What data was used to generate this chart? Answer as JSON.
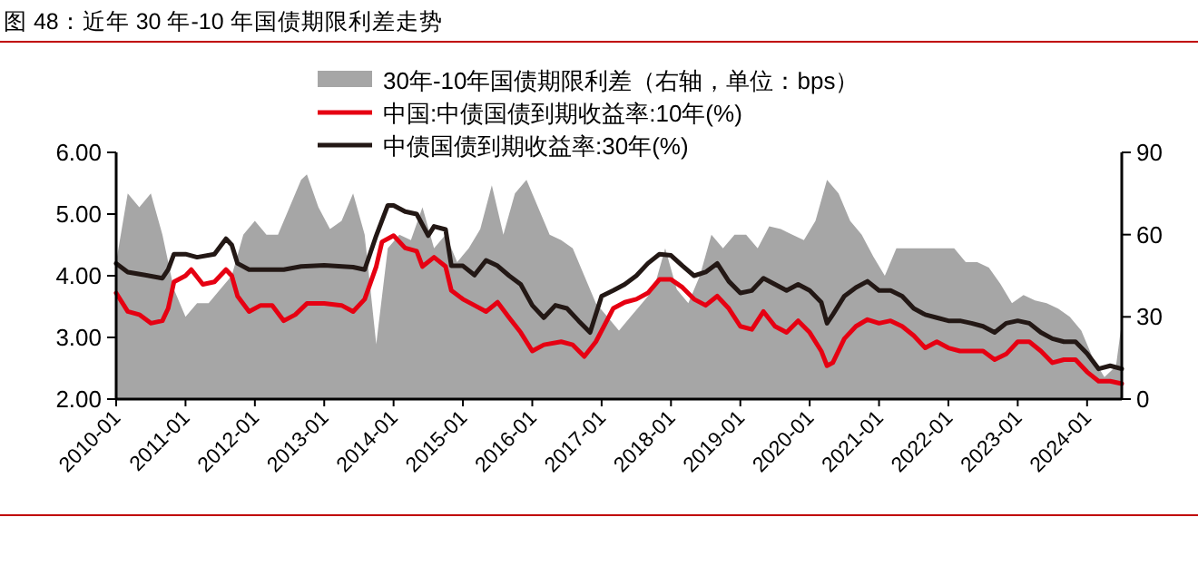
{
  "chart_data": {
    "type": "line",
    "title": "图 48：近年 30 年-10 年国债期限利差走势",
    "xlim": [
      "2010-01",
      "2024-07"
    ],
    "xticks": [
      "2010-01",
      "2011-01",
      "2012-01",
      "2013-01",
      "2014-01",
      "2015-01",
      "2016-01",
      "2017-01",
      "2018-01",
      "2019-01",
      "2020-01",
      "2021-01",
      "2022-01",
      "2023-01",
      "2024-01"
    ],
    "ylim": [
      2,
      6
    ],
    "yticks": [
      {
        "value": 2,
        "label": "2.00"
      },
      {
        "value": 3,
        "label": "3.00"
      },
      {
        "value": 4,
        "label": "4.00"
      },
      {
        "value": 5,
        "label": "5.00"
      },
      {
        "value": 6,
        "label": "6.00"
      }
    ],
    "y2lim": [
      0,
      90
    ],
    "y2ticks": [
      0,
      30,
      60,
      90
    ],
    "legend": "top",
    "series": [
      {
        "name": "30年-10年国债期限利差（右轴，单位：bps）",
        "type": "area",
        "axis": "y2",
        "color": "#a6a6a6",
        "x": [
          "2010-01",
          "2010-03",
          "2010-05",
          "2010-07",
          "2010-09",
          "2010-11",
          "2011-01",
          "2011-03",
          "2011-05",
          "2011-07",
          "2011-09",
          "2011-11",
          "2012-01",
          "2012-03",
          "2012-05",
          "2012-07",
          "2012-09",
          "2012-10",
          "2012-12",
          "2013-02",
          "2013-04",
          "2013-06",
          "2013-08",
          "2013-10",
          "2013-12",
          "2014-02",
          "2014-04",
          "2014-06",
          "2014-08",
          "2014-10",
          "2014-12",
          "2015-02",
          "2015-04",
          "2015-06",
          "2015-08",
          "2015-10",
          "2015-12",
          "2016-02",
          "2016-04",
          "2016-06",
          "2016-08",
          "2016-10",
          "2016-12",
          "2017-02",
          "2017-04",
          "2017-06",
          "2017-08",
          "2017-10",
          "2017-12",
          "2018-02",
          "2018-04",
          "2018-06",
          "2018-08",
          "2018-10",
          "2018-12",
          "2019-02",
          "2019-04",
          "2019-06",
          "2019-08",
          "2019-10",
          "2019-12",
          "2020-02",
          "2020-04",
          "2020-06",
          "2020-08",
          "2020-10",
          "2020-12",
          "2021-02",
          "2021-04",
          "2021-06",
          "2021-08",
          "2021-10",
          "2021-12",
          "2022-02",
          "2022-04",
          "2022-06",
          "2022-08",
          "2022-10",
          "2022-12",
          "2023-02",
          "2023-04",
          "2023-06",
          "2023-08",
          "2023-10",
          "2023-12",
          "2024-02",
          "2024-04",
          "2024-06",
          "2024-07"
        ],
        "values": [
          50,
          75,
          70,
          75,
          60,
          40,
          30,
          35,
          35,
          40,
          45,
          60,
          65,
          60,
          60,
          70,
          80,
          82,
          70,
          62,
          65,
          75,
          60,
          20,
          55,
          60,
          58,
          70,
          55,
          60,
          50,
          55,
          62,
          78,
          60,
          75,
          80,
          70,
          60,
          58,
          55,
          45,
          35,
          30,
          25,
          30,
          35,
          40,
          55,
          40,
          35,
          45,
          60,
          55,
          60,
          60,
          55,
          63,
          62,
          60,
          58,
          65,
          80,
          75,
          65,
          60,
          52,
          45,
          55,
          55,
          55,
          55,
          55,
          55,
          50,
          50,
          48,
          42,
          35,
          38,
          36,
          35,
          33,
          30,
          25,
          15,
          8,
          12,
          28
        ]
      },
      {
        "name": "中国:中债国债到期收益率:10年(%)",
        "color": "#e60012",
        "x": [
          "2010-01",
          "2010-03",
          "2010-05",
          "2010-07",
          "2010-09",
          "2010-10",
          "2010-11",
          "2011-01",
          "2011-02",
          "2011-04",
          "2011-06",
          "2011-08",
          "2011-09",
          "2011-10",
          "2011-12",
          "2012-02",
          "2012-04",
          "2012-06",
          "2012-08",
          "2012-10",
          "2013-01",
          "2013-04",
          "2013-06",
          "2013-08",
          "2013-10",
          "2013-11",
          "2014-01",
          "2014-03",
          "2014-05",
          "2014-06",
          "2014-08",
          "2014-10",
          "2014-11",
          "2015-01",
          "2015-03",
          "2015-05",
          "2015-07",
          "2015-09",
          "2015-11",
          "2016-01",
          "2016-03",
          "2016-06",
          "2016-08",
          "2016-10",
          "2016-12",
          "2017-03",
          "2017-05",
          "2017-07",
          "2017-09",
          "2017-11",
          "2018-01",
          "2018-03",
          "2018-05",
          "2018-07",
          "2018-09",
          "2018-11",
          "2019-01",
          "2019-03",
          "2019-05",
          "2019-07",
          "2019-09",
          "2019-11",
          "2020-01",
          "2020-03",
          "2020-04",
          "2020-05",
          "2020-07",
          "2020-09",
          "2020-11",
          "2021-01",
          "2021-03",
          "2021-05",
          "2021-07",
          "2021-09",
          "2021-11",
          "2022-01",
          "2022-03",
          "2022-05",
          "2022-07",
          "2022-09",
          "2022-11",
          "2023-01",
          "2023-03",
          "2023-05",
          "2023-07",
          "2023-09",
          "2023-11",
          "2024-01",
          "2024-03",
          "2024-05",
          "2024-07"
        ],
        "values": [
          3.72,
          3.42,
          3.37,
          3.23,
          3.27,
          3.47,
          3.9,
          4.0,
          4.1,
          3.86,
          3.9,
          4.1,
          4.0,
          3.67,
          3.42,
          3.52,
          3.52,
          3.27,
          3.37,
          3.55,
          3.55,
          3.52,
          3.42,
          3.62,
          4.15,
          4.55,
          4.65,
          4.45,
          4.4,
          4.15,
          4.3,
          4.15,
          3.76,
          3.62,
          3.52,
          3.42,
          3.57,
          3.32,
          3.08,
          2.78,
          2.88,
          2.93,
          2.88,
          2.69,
          2.93,
          3.47,
          3.57,
          3.62,
          3.72,
          3.94,
          3.94,
          3.81,
          3.62,
          3.52,
          3.67,
          3.47,
          3.18,
          3.13,
          3.42,
          3.18,
          3.08,
          3.27,
          3.08,
          2.78,
          2.54,
          2.59,
          2.98,
          3.18,
          3.29,
          3.23,
          3.27,
          3.18,
          3.03,
          2.83,
          2.93,
          2.83,
          2.78,
          2.78,
          2.78,
          2.64,
          2.73,
          2.93,
          2.93,
          2.78,
          2.59,
          2.64,
          2.64,
          2.44,
          2.29,
          2.29,
          2.25
        ]
      },
      {
        "name": "中债国债到期收益率:30年(%)",
        "color": "#231815",
        "x": [
          "2010-01",
          "2010-03",
          "2010-06",
          "2010-09",
          "2010-10",
          "2010-11",
          "2011-01",
          "2011-03",
          "2011-06",
          "2011-08",
          "2011-09",
          "2011-10",
          "2011-12",
          "2012-03",
          "2012-06",
          "2012-09",
          "2013-01",
          "2013-06",
          "2013-08",
          "2013-10",
          "2013-12",
          "2014-01",
          "2014-03",
          "2014-05",
          "2014-07",
          "2014-08",
          "2014-10",
          "2014-11",
          "2015-01",
          "2015-03",
          "2015-05",
          "2015-07",
          "2015-09",
          "2015-11",
          "2016-01",
          "2016-03",
          "2016-05",
          "2016-07",
          "2016-09",
          "2016-11",
          "2017-01",
          "2017-03",
          "2017-05",
          "2017-07",
          "2017-09",
          "2017-11",
          "2018-01",
          "2018-03",
          "2018-05",
          "2018-07",
          "2018-09",
          "2018-11",
          "2019-01",
          "2019-03",
          "2019-05",
          "2019-07",
          "2019-09",
          "2019-11",
          "2020-01",
          "2020-03",
          "2020-04",
          "2020-05",
          "2020-07",
          "2020-09",
          "2020-11",
          "2021-01",
          "2021-03",
          "2021-05",
          "2021-07",
          "2021-09",
          "2021-11",
          "2022-01",
          "2022-03",
          "2022-05",
          "2022-07",
          "2022-09",
          "2022-11",
          "2023-01",
          "2023-03",
          "2023-05",
          "2023-07",
          "2023-09",
          "2023-11",
          "2024-01",
          "2024-03",
          "2024-05",
          "2024-07"
        ],
        "values": [
          4.2,
          4.06,
          4.01,
          3.96,
          4.1,
          4.35,
          4.35,
          4.3,
          4.35,
          4.6,
          4.5,
          4.2,
          4.1,
          4.1,
          4.1,
          4.15,
          4.17,
          4.14,
          4.1,
          4.65,
          5.14,
          5.14,
          5.04,
          5.0,
          4.65,
          4.8,
          4.75,
          4.16,
          4.16,
          4.01,
          4.25,
          4.16,
          4.0,
          3.86,
          3.52,
          3.32,
          3.52,
          3.47,
          3.27,
          3.08,
          3.67,
          3.76,
          3.86,
          4.0,
          4.2,
          4.35,
          4.33,
          4.16,
          4.0,
          4.06,
          4.2,
          3.91,
          3.72,
          3.76,
          3.96,
          3.86,
          3.76,
          3.86,
          3.76,
          3.57,
          3.23,
          3.37,
          3.67,
          3.81,
          3.91,
          3.76,
          3.76,
          3.67,
          3.47,
          3.37,
          3.32,
          3.27,
          3.27,
          3.23,
          3.18,
          3.08,
          3.23,
          3.27,
          3.23,
          3.08,
          2.98,
          2.93,
          2.93,
          2.74,
          2.49,
          2.54,
          2.49
        ]
      }
    ]
  }
}
